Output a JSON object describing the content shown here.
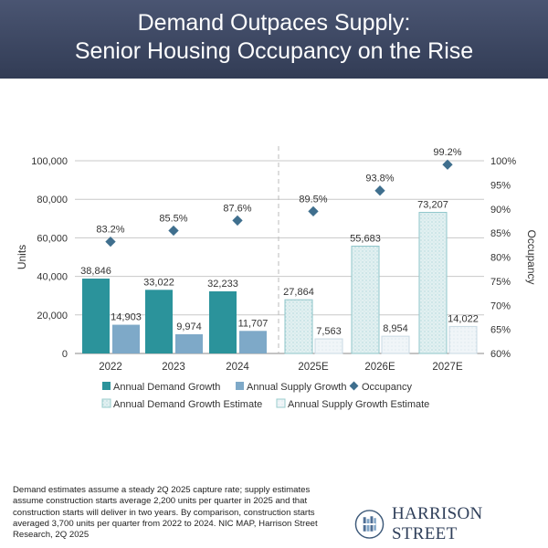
{
  "header": {
    "line1": "Demand Outpaces Supply:",
    "line2": "Senior Housing Occupancy on the Rise"
  },
  "chart_data": {
    "type": "bar",
    "categories": [
      "2022",
      "2023",
      "2024",
      "2025E",
      "2026E",
      "2027E"
    ],
    "series": [
      {
        "name": "Annual Demand Growth",
        "values": [
          38846,
          33022,
          32233,
          null,
          null,
          null
        ],
        "color": "#2b939b"
      },
      {
        "name": "Annual Supply Growth",
        "values": [
          14903,
          9974,
          11707,
          null,
          null,
          null
        ],
        "color": "#7ea9c8"
      },
      {
        "name": "Annual Demand Growth Estimate",
        "values": [
          null,
          null,
          null,
          27864,
          55683,
          73207
        ],
        "color": "#dceeef"
      },
      {
        "name": "Annual Supply Growth Estimate",
        "values": [
          null,
          null,
          null,
          7563,
          8954,
          14022
        ],
        "color": "#edf3f6"
      },
      {
        "name": "Occupancy",
        "type": "scatter",
        "axis": "right",
        "values": [
          83.2,
          85.5,
          87.6,
          89.5,
          93.8,
          99.2
        ],
        "color": "#3f6f8e"
      }
    ],
    "data_labels": {
      "demand": [
        "38,846",
        "33,022",
        "32,233",
        "27,864",
        "55,683",
        "73,207"
      ],
      "supply": [
        "14,903",
        "9,974",
        "11,707",
        "7,563",
        "8,954",
        "14,022"
      ],
      "occupancy": [
        "83.2%",
        "85.5%",
        "87.6%",
        "89.5%",
        "93.8%",
        "99.2%"
      ]
    },
    "ylabel": "Units",
    "y2label": "Occupancy",
    "ylim": [
      0,
      100000
    ],
    "y2lim": [
      60,
      100
    ],
    "yticks": [
      "0",
      "20,000",
      "40,000",
      "60,000",
      "80,000",
      "100,000"
    ],
    "y2ticks": [
      "60%",
      "65%",
      "70%",
      "75%",
      "80%",
      "85%",
      "90%",
      "95%",
      "100%"
    ],
    "grid": true,
    "legend": "bottom"
  },
  "footnote": "Demand estimates assume a steady 2Q 2025 capture rate; supply estimates assume construction starts average 2,200 units per quarter in 2025 and that construction starts will deliver in two years. By comparison, construction starts averaged 3,700 units per quarter from 2022 to 2024. NIC MAP, Harrison Street Research, 2Q 2025",
  "logo": {
    "text": "HARRISON STREET"
  }
}
